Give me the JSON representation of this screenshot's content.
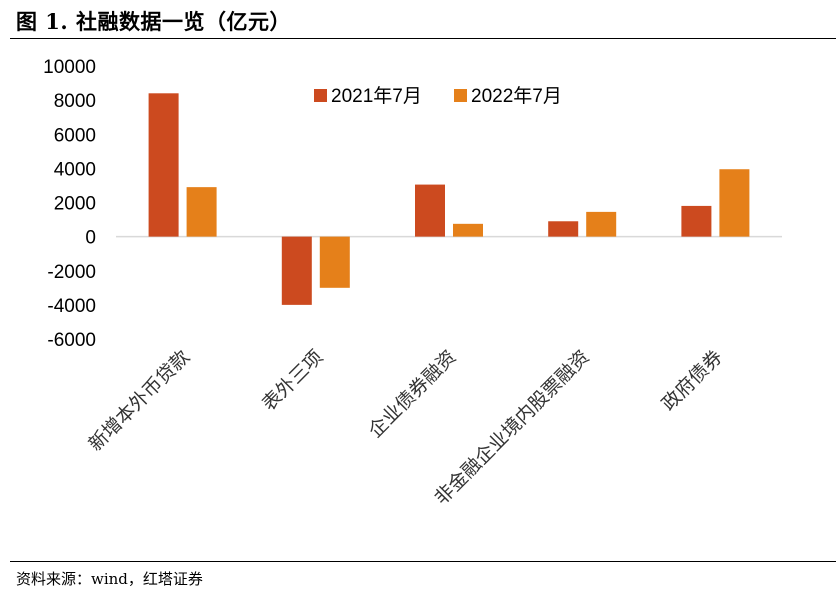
{
  "figure": {
    "title": "图 1. 社融数据一览（亿元）",
    "source": "资料来源：wind，红塔证券"
  },
  "colors": {
    "series_2021": "#CC4A1F",
    "series_2022": "#E5801A",
    "axis": "#D9D9D9"
  },
  "chart_data": {
    "type": "bar",
    "categories": [
      "新增本外币贷款",
      "表外三项",
      "企业债券融资",
      "非金融企业境内股票融资",
      "政府债券"
    ],
    "series": [
      {
        "name": "2021年7月",
        "values": [
          8400,
          -4000,
          3050,
          900,
          1800
        ]
      },
      {
        "name": "2022年7月",
        "values": [
          2900,
          -3000,
          750,
          1450,
          3950
        ]
      }
    ],
    "ylim": [
      -6000,
      10000
    ],
    "yticks": [
      "10000",
      "8000",
      "6000",
      "4000",
      "2000",
      "0",
      "-2000",
      "-4000",
      "-6000"
    ],
    "xlabel": "",
    "ylabel": "",
    "legend_position": "top-center",
    "grid": false
  }
}
